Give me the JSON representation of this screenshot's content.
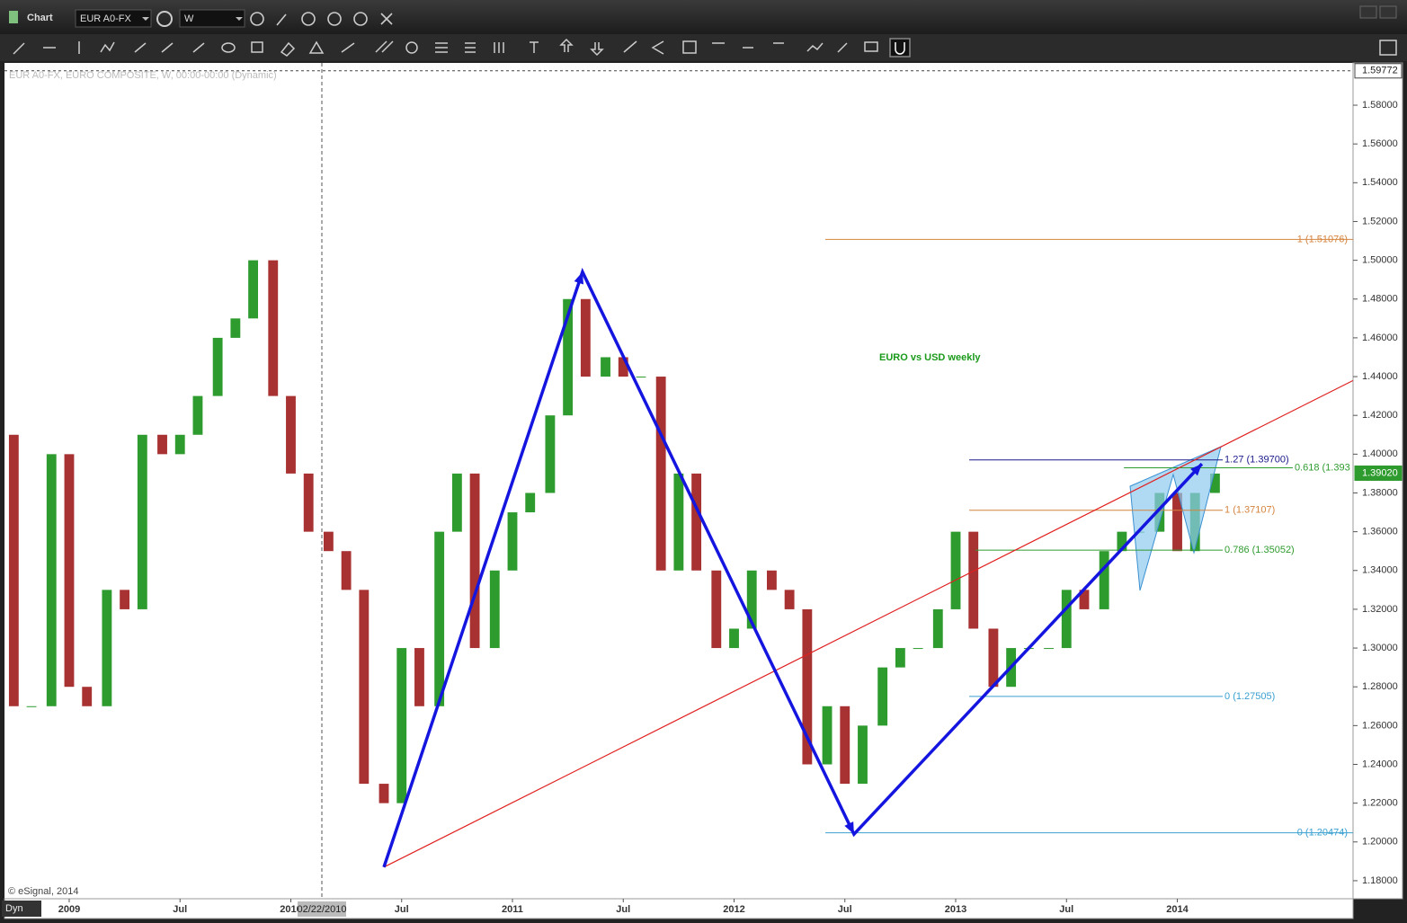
{
  "window": {
    "title": "Chart",
    "symbol": "EUR A0-FX",
    "interval": "W"
  },
  "chart_data": {
    "type": "candlestick",
    "title": "EURO vs USD weekly",
    "info": "EUR A0-FX, EURO COMPOSITE, W, 00:00-00:00 (Dynamic)",
    "credit": "© eSignal, 2014",
    "mode": "Dyn",
    "cursor_label": "02/22/2010",
    "cursor_x": 2010.14,
    "xlim": [
      2008.708,
      2014.793
    ],
    "ylim": [
      1.1707,
      1.6018
    ],
    "xticks": [
      {
        "value": 2009,
        "label": "2009"
      },
      {
        "value": 2009.5,
        "label": "Jul"
      },
      {
        "value": 2010,
        "label": "2010"
      },
      {
        "value": 2010.5,
        "label": "Jul"
      },
      {
        "value": 2011,
        "label": "2011"
      },
      {
        "value": 2011.5,
        "label": "Jul"
      },
      {
        "value": 2012,
        "label": "2012"
      },
      {
        "value": 2012.5,
        "label": "Jul"
      },
      {
        "value": 2013,
        "label": "2013"
      },
      {
        "value": 2013.5,
        "label": "Jul"
      },
      {
        "value": 2014,
        "label": "2014"
      }
    ],
    "yticks": [
      {
        "value": 1.18,
        "label": "1.18000"
      },
      {
        "value": 1.2,
        "label": "1.20000"
      },
      {
        "value": 1.22,
        "label": "1.22000"
      },
      {
        "value": 1.24,
        "label": "1.24000"
      },
      {
        "value": 1.26,
        "label": "1.26000"
      },
      {
        "value": 1.28,
        "label": "1.28000"
      },
      {
        "value": 1.3,
        "label": "1.30000"
      },
      {
        "value": 1.32,
        "label": "1.32000"
      },
      {
        "value": 1.34,
        "label": "1.34000"
      },
      {
        "value": 1.36,
        "label": "1.36000"
      },
      {
        "value": 1.38,
        "label": "1.38000"
      },
      {
        "value": 1.4,
        "label": "1.40000"
      },
      {
        "value": 1.42,
        "label": "1.42000"
      },
      {
        "value": 1.44,
        "label": "1.44000"
      },
      {
        "value": 1.46,
        "label": "1.46000"
      },
      {
        "value": 1.48,
        "label": "1.48000"
      },
      {
        "value": 1.5,
        "label": "1.50000"
      },
      {
        "value": 1.52,
        "label": "1.52000"
      },
      {
        "value": 1.54,
        "label": "1.54000"
      },
      {
        "value": 1.56,
        "label": "1.56000"
      },
      {
        "value": 1.58,
        "label": "1.58000"
      }
    ],
    "price_markers": [
      {
        "value": 1.59772,
        "label": "1.59772",
        "color": "#ffffff"
      },
      {
        "value": 1.3902,
        "label": "1.39020",
        "color": "#2e9b2e"
      }
    ],
    "up_color": "#2e9b2e",
    "down_color": "#a83232",
    "x": [
      2008.75,
      2008.83,
      2008.92,
      2009.0,
      2009.08,
      2009.17,
      2009.25,
      2009.33,
      2009.42,
      2009.5,
      2009.58,
      2009.67,
      2009.75,
      2009.83,
      2009.92,
      2010.0,
      2010.08,
      2010.17,
      2010.25,
      2010.33,
      2010.42,
      2010.5,
      2010.58,
      2010.67,
      2010.75,
      2010.83,
      2010.92,
      2011.0,
      2011.08,
      2011.17,
      2011.25,
      2011.33,
      2011.42,
      2011.5,
      2011.58,
      2011.67,
      2011.75,
      2011.83,
      2011.92,
      2012.0,
      2012.08,
      2012.17,
      2012.25,
      2012.33,
      2012.42,
      2012.5,
      2012.58,
      2012.67,
      2012.75,
      2012.83,
      2012.92,
      2013.0,
      2013.08,
      2013.17,
      2013.25,
      2013.33,
      2013.42,
      2013.5,
      2013.58,
      2013.67,
      2013.75,
      2013.83,
      2013.92,
      2014.0,
      2014.08,
      2014.17
    ],
    "open": [
      1.41,
      1.27,
      1.27,
      1.4,
      1.28,
      1.27,
      1.33,
      1.32,
      1.41,
      1.4,
      1.41,
      1.43,
      1.46,
      1.47,
      1.5,
      1.43,
      1.39,
      1.36,
      1.35,
      1.33,
      1.23,
      1.22,
      1.3,
      1.27,
      1.36,
      1.39,
      1.3,
      1.34,
      1.37,
      1.38,
      1.42,
      1.48,
      1.44,
      1.45,
      1.44,
      1.44,
      1.34,
      1.39,
      1.34,
      1.3,
      1.31,
      1.34,
      1.33,
      1.32,
      1.24,
      1.27,
      1.23,
      1.26,
      1.29,
      1.3,
      1.3,
      1.32,
      1.36,
      1.31,
      1.28,
      1.3,
      1.3,
      1.3,
      1.33,
      1.32,
      1.35,
      1.36,
      1.36,
      1.38,
      1.35,
      1.38
    ],
    "close": [
      1.27,
      1.27,
      1.4,
      1.28,
      1.27,
      1.33,
      1.32,
      1.41,
      1.4,
      1.41,
      1.43,
      1.46,
      1.47,
      1.5,
      1.43,
      1.39,
      1.36,
      1.35,
      1.33,
      1.23,
      1.22,
      1.3,
      1.27,
      1.36,
      1.39,
      1.3,
      1.34,
      1.37,
      1.38,
      1.42,
      1.48,
      1.44,
      1.45,
      1.44,
      1.44,
      1.34,
      1.39,
      1.34,
      1.3,
      1.31,
      1.34,
      1.33,
      1.32,
      1.24,
      1.27,
      1.23,
      1.26,
      1.29,
      1.3,
      1.3,
      1.32,
      1.36,
      1.31,
      1.28,
      1.3,
      1.3,
      1.3,
      1.33,
      1.32,
      1.35,
      1.36,
      1.36,
      1.38,
      1.35,
      1.38,
      1.39
    ],
    "pattern": {
      "color": "#1515e0",
      "x": [
        2010.42,
        2011.316,
        2012.541,
        2014.111
      ],
      "y": [
        1.187,
        1.494,
        1.204,
        1.395
      ]
    },
    "trendline": {
      "color": "#e02020",
      "x": [
        2010.42,
        2014.793
      ],
      "y": [
        1.187,
        1.438
      ]
    },
    "levels": [
      {
        "label": "1 (1.51076)",
        "value": 1.51076,
        "from": 2012.412,
        "to": 2014.793,
        "color": "#d4843e"
      },
      {
        "label": "0 (1.20474)",
        "value": 1.20474,
        "from": 2012.412,
        "to": 2014.793,
        "color": "#3aa0d0"
      },
      {
        "label": "1.27 (1.39700)",
        "value": 1.397,
        "from": 2013.061,
        "to": 2014.205,
        "color": "#1a1a8a"
      },
      {
        "label": "0.618 (1.393",
        "value": 1.393,
        "from": 2013.759,
        "to": 2014.521,
        "color": "#2e9b2e"
      },
      {
        "label": "1 (1.37107)",
        "value": 1.37107,
        "from": 2013.061,
        "to": 2014.205,
        "color": "#d4843e"
      },
      {
        "label": "0.786 (1.35052)",
        "value": 1.35052,
        "from": 2013.089,
        "to": 2014.205,
        "color": "#2e9b2e"
      },
      {
        "label": "0 (1.27505)",
        "value": 1.27505,
        "from": 2013.061,
        "to": 2014.205,
        "color": "#3aa0d0"
      }
    ]
  }
}
